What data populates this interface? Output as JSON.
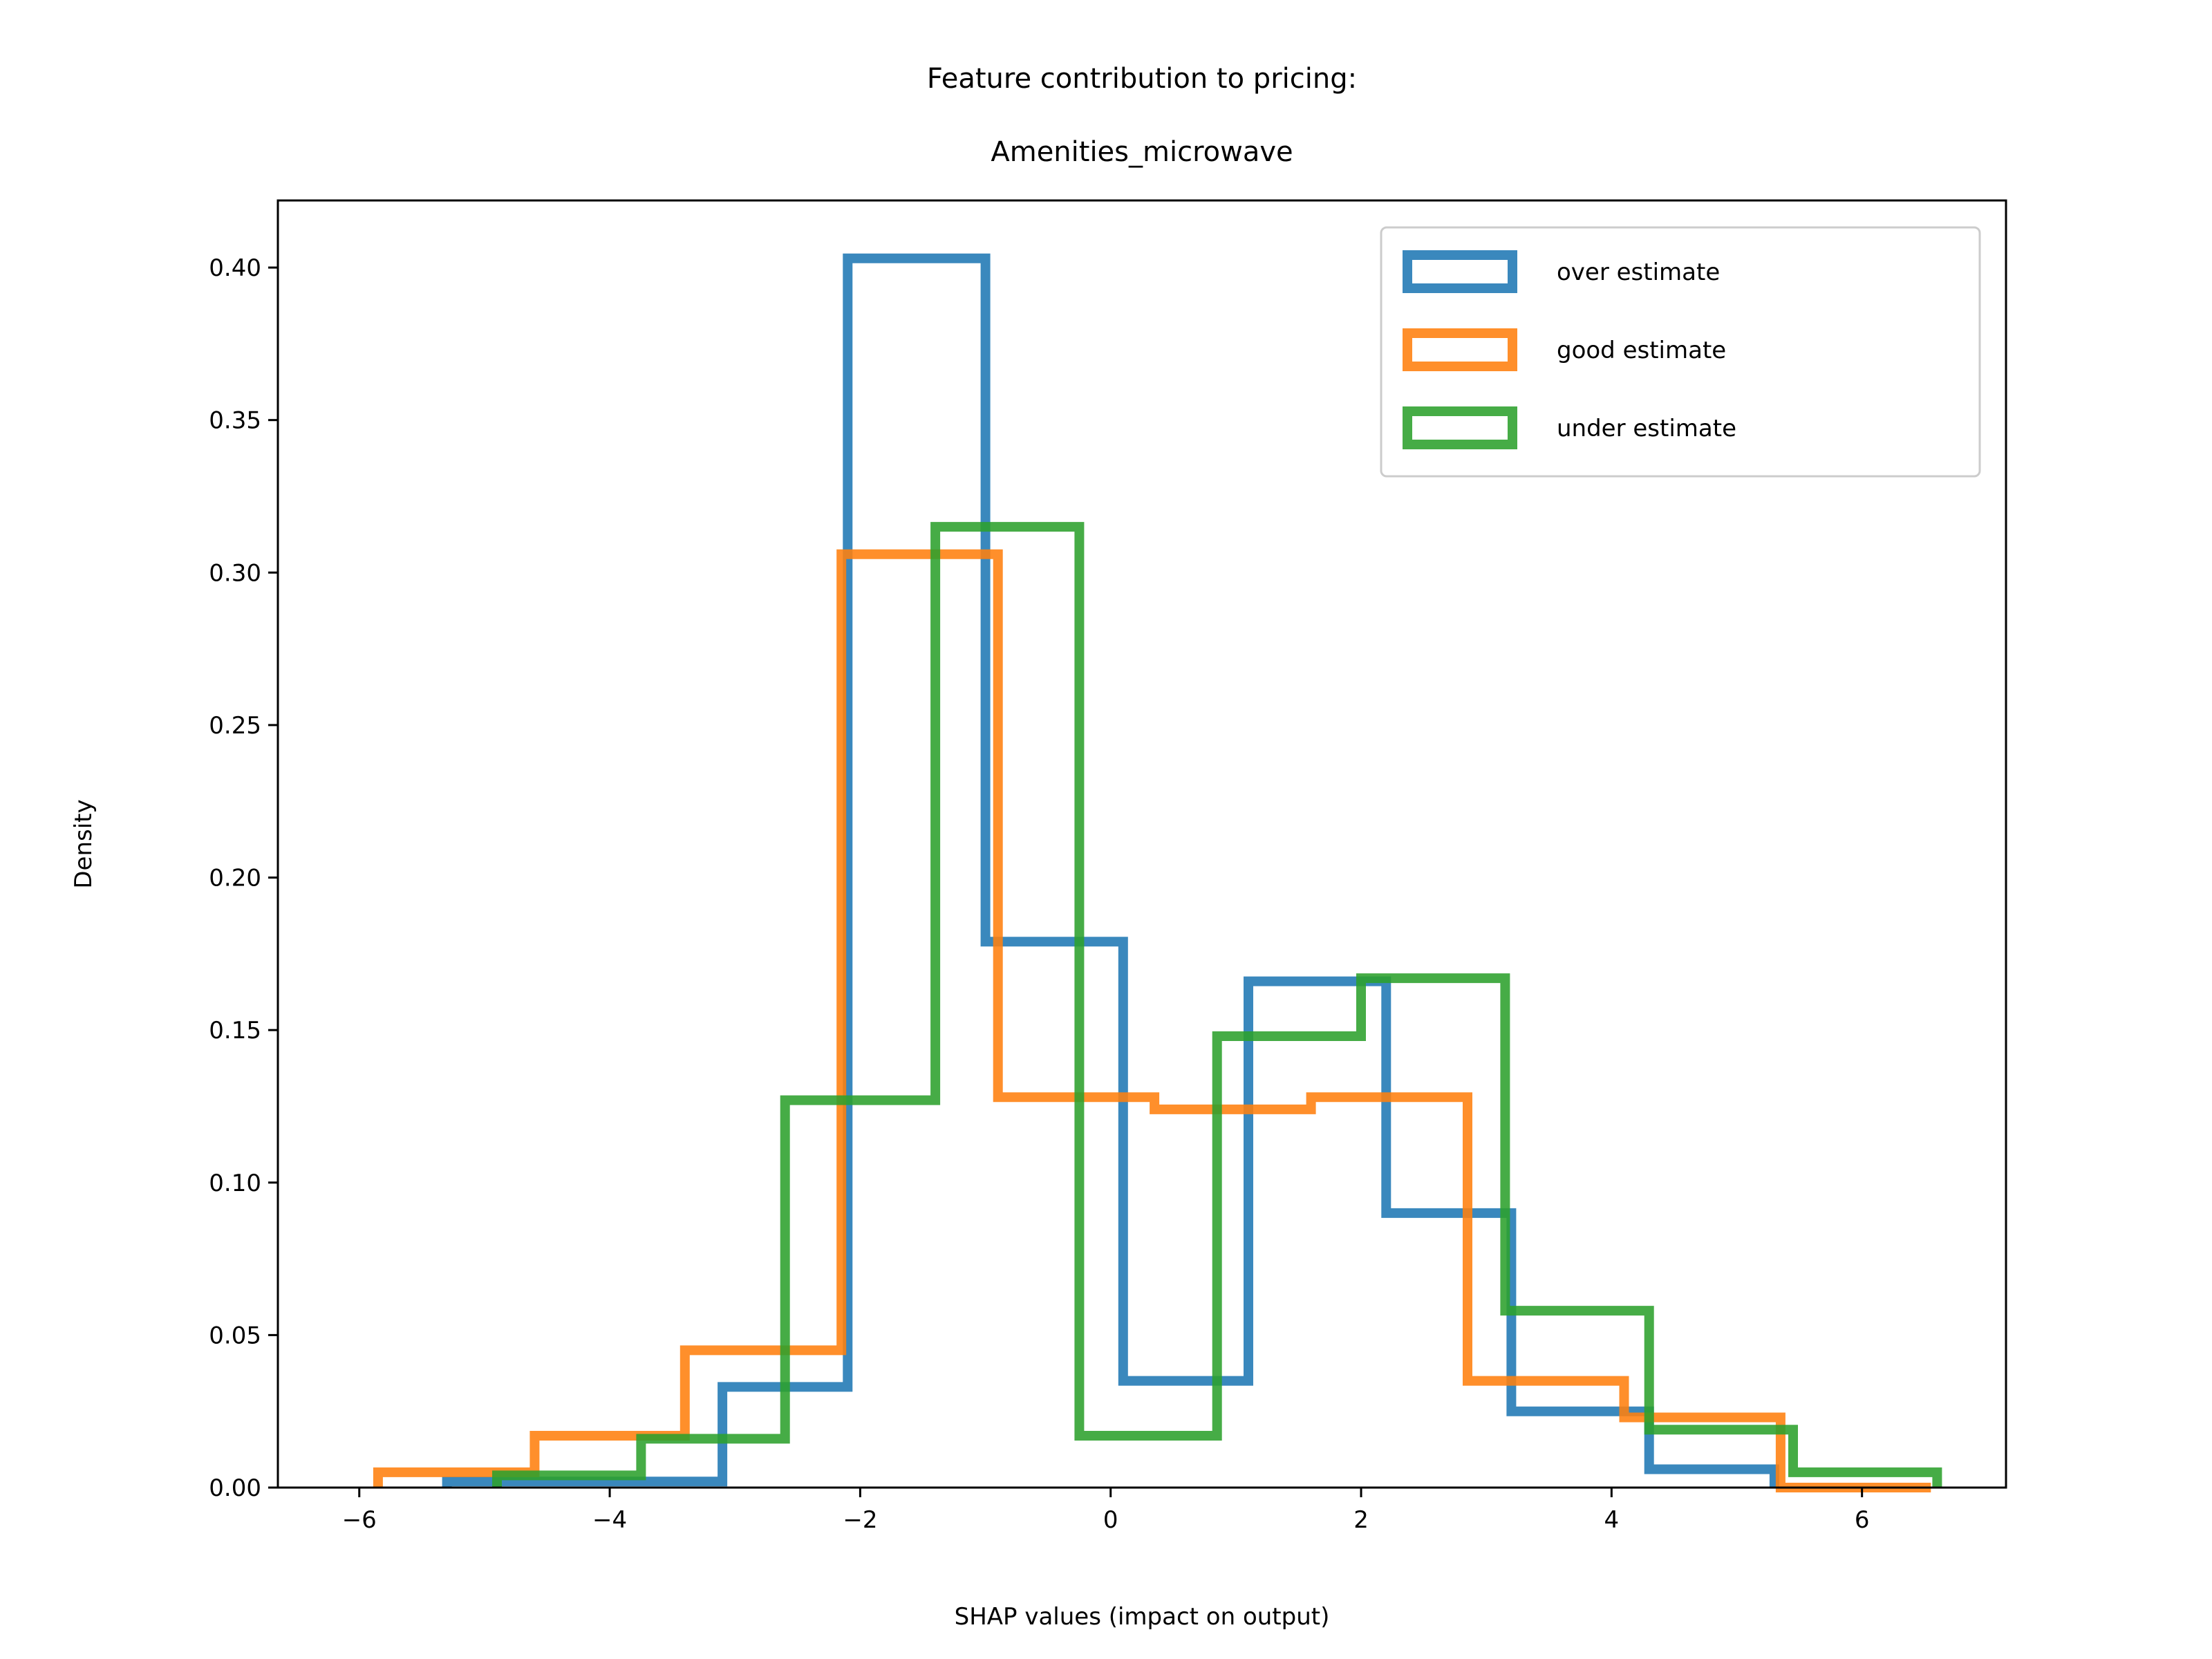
{
  "chart_data": {
    "type": "histogram",
    "title_line1": "Feature contribution to pricing:",
    "title_line2": "Amenities_microwave",
    "xlabel": "SHAP values (impact on output)",
    "ylabel": "Density",
    "xlim": [
      -6.65,
      7.15
    ],
    "ylim": [
      0.0,
      0.422
    ],
    "xticks": [
      -6,
      -4,
      -2,
      0,
      2,
      4,
      6
    ],
    "xtick_labels": [
      "−6",
      "−4",
      "−2",
      "0",
      "2",
      "4",
      "6"
    ],
    "yticks": [
      0.0,
      0.05,
      0.1,
      0.15,
      0.2,
      0.25,
      0.3,
      0.35,
      0.4
    ],
    "ytick_labels": [
      "0.00",
      "0.05",
      "0.10",
      "0.15",
      "0.20",
      "0.25",
      "0.30",
      "0.35",
      "0.40"
    ],
    "legend_position": "top-right",
    "grid": false,
    "series": [
      {
        "name": "over estimate",
        "color": "#1f77b4",
        "edges": [
          -5.3,
          -4.2,
          -3.1,
          -2.1,
          -1.0,
          0.1,
          1.1,
          2.2,
          3.2,
          4.3,
          5.3
        ],
        "values": [
          0.002,
          0.002,
          0.033,
          0.403,
          0.179,
          0.035,
          0.166,
          0.09,
          0.025,
          0.006
        ]
      },
      {
        "name": "good estimate",
        "color": "#ff7f0e",
        "edges": [
          -5.85,
          -4.6,
          -3.4,
          -2.15,
          -0.9,
          0.35,
          1.6,
          2.85,
          4.1,
          5.35,
          6.55
        ],
        "values": [
          0.005,
          0.017,
          0.045,
          0.306,
          0.128,
          0.124,
          0.128,
          0.035,
          0.023,
          0.0
        ]
      },
      {
        "name": "under estimate",
        "color": "#2ca02c",
        "edges": [
          -4.9,
          -3.75,
          -2.6,
          -1.4,
          -0.25,
          0.85,
          2.0,
          3.15,
          4.3,
          5.45,
          6.6
        ],
        "values": [
          0.004,
          0.016,
          0.127,
          0.315,
          0.017,
          0.148,
          0.167,
          0.058,
          0.019,
          0.005
        ]
      }
    ]
  }
}
